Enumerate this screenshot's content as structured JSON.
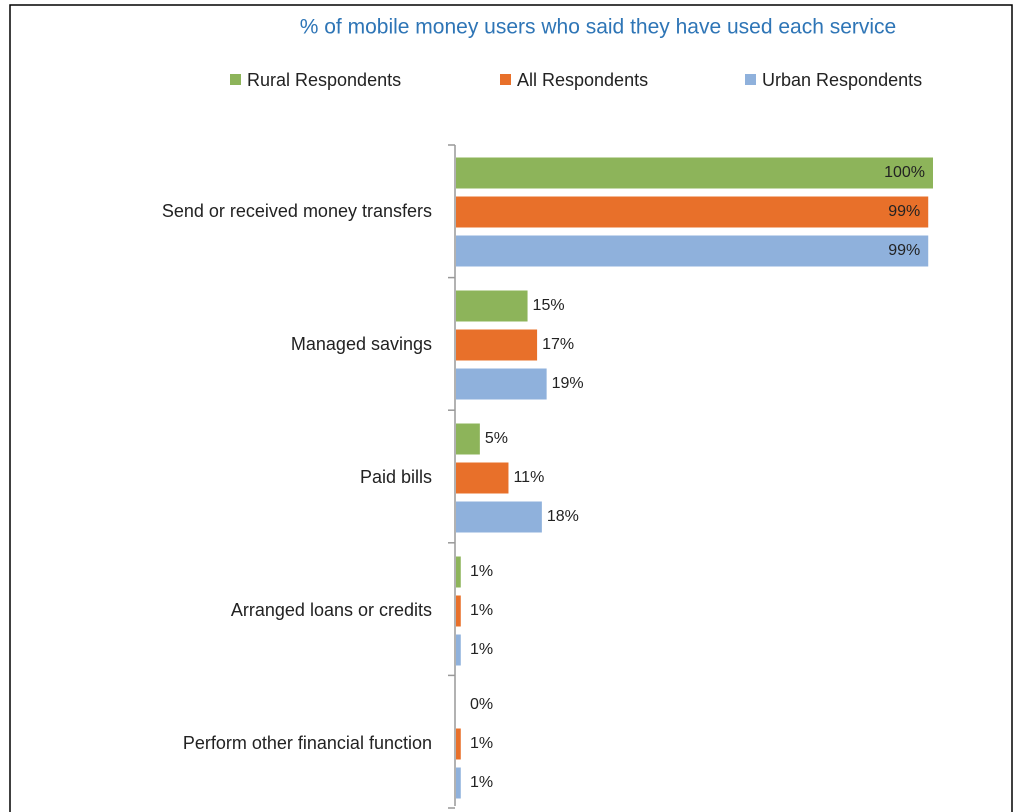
{
  "chart_data": {
    "type": "bar",
    "orientation": "horizontal",
    "subtitle": "% of mobile money users who said they have used each service",
    "categories": [
      "Send or received money transfers",
      "Managed savings",
      "Paid bills",
      "Arranged loans or credits",
      "Perform other financial function"
    ],
    "series": [
      {
        "name": "Rural Respondents",
        "color": "#8db45a",
        "values": [
          100,
          15,
          5,
          1,
          0
        ],
        "value_labels": [
          "100%",
          "15%",
          "5%",
          "1%",
          "0%"
        ]
      },
      {
        "name": "All Respondents",
        "color": "#e8702a",
        "values": [
          99,
          17,
          11,
          1,
          1
        ],
        "value_labels": [
          "99%",
          "17%",
          "11%",
          "1%",
          "1%"
        ]
      },
      {
        "name": "Urban Respondents",
        "color": "#8fb1dc",
        "values": [
          99,
          19,
          18,
          1,
          1
        ],
        "value_labels": [
          "99%",
          "19%",
          "18%",
          "1%",
          "1%"
        ]
      }
    ],
    "legend": "top"
  }
}
